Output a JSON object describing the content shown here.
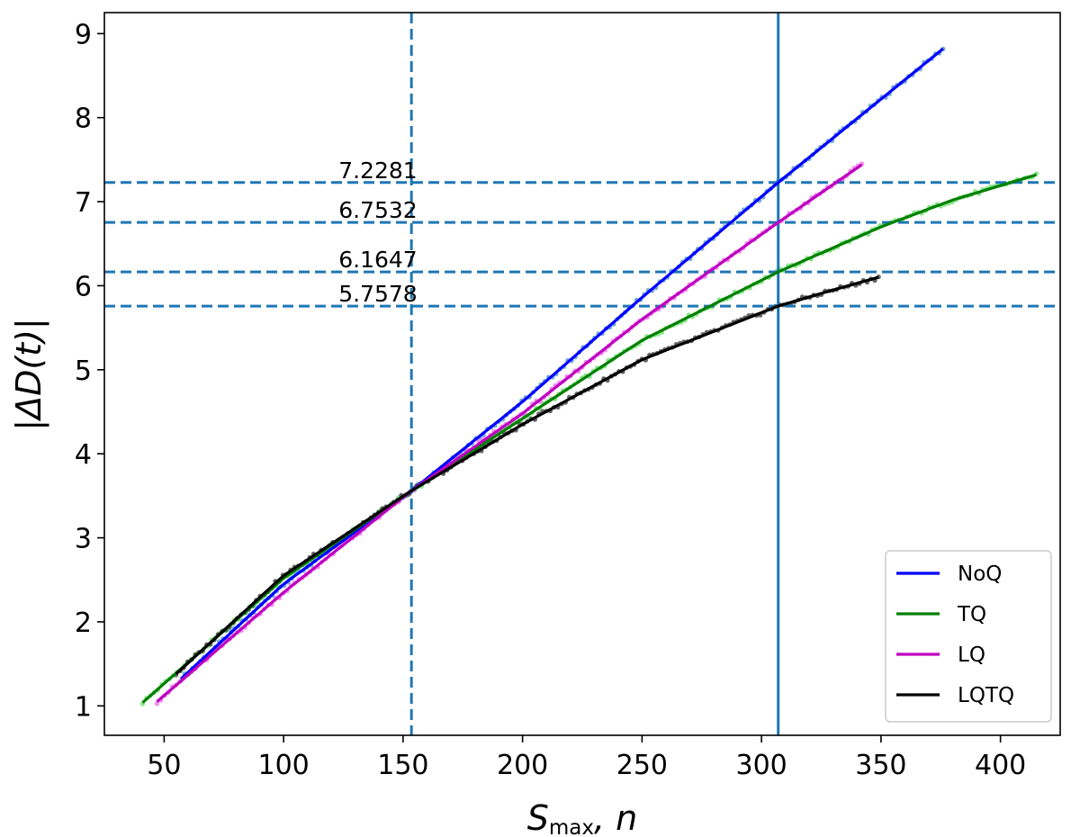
{
  "chart_data": {
    "type": "line",
    "xlabel": "S_max, n",
    "xlabel_main": "S",
    "xlabel_sub": "max",
    "xlabel_rest": ", n",
    "ylabel": "|ΔD(t)|",
    "xlim": [
      25,
      425
    ],
    "ylim": [
      0.65,
      9.25
    ],
    "xticks": [
      50,
      100,
      150,
      200,
      250,
      300,
      350,
      400
    ],
    "yticks": [
      1,
      2,
      3,
      4,
      5,
      6,
      7,
      8,
      9
    ],
    "grid": false,
    "legend_position": "bottom-right",
    "reference_lines": {
      "vertical_dashed": 153.5,
      "vertical_solid": 307,
      "horizontal_dashed": [
        7.2281,
        6.7532,
        6.1647,
        5.7578
      ]
    },
    "annotations": [
      {
        "text": "7.2281",
        "x": 123,
        "y": 7.2281
      },
      {
        "text": "6.7532",
        "x": 123,
        "y": 6.7532
      },
      {
        "text": "6.1647",
        "x": 123,
        "y": 6.1647
      },
      {
        "text": "5.7578",
        "x": 123,
        "y": 5.7578
      }
    ],
    "series": [
      {
        "name": "NoQ",
        "color": "#0000ff",
        "x": [
          57,
          100,
          153.5,
          200,
          250,
          307,
          376
        ],
        "y": [
          1.32,
          2.45,
          3.56,
          4.62,
          5.86,
          7.2281,
          8.82
        ]
      },
      {
        "name": "TQ",
        "color": "#008000",
        "x": [
          41,
          100,
          153.5,
          200,
          250,
          307,
          350,
          380,
          415
        ],
        "y": [
          1.04,
          2.52,
          3.56,
          4.42,
          5.35,
          6.1647,
          6.7,
          7.02,
          7.32
        ]
      },
      {
        "name": "LQ",
        "color": "#bf00bf",
        "x": [
          47,
          100,
          153.5,
          200,
          250,
          307,
          342
        ],
        "y": [
          1.05,
          2.35,
          3.56,
          4.48,
          5.6,
          6.7532,
          7.44
        ]
      },
      {
        "name": "LQTQ",
        "color": "#000000",
        "x": [
          55,
          100,
          153.5,
          200,
          250,
          307,
          330,
          349
        ],
        "y": [
          1.38,
          2.55,
          3.56,
          4.35,
          5.12,
          5.7578,
          5.95,
          6.1
        ]
      }
    ]
  },
  "colors": {
    "reference_line": "#1f77b4",
    "scatter_blue": "#4a8fc8",
    "scatter_green": "#66dd66",
    "scatter_magenta": "#ee66ee",
    "scatter_black": "#333333"
  }
}
